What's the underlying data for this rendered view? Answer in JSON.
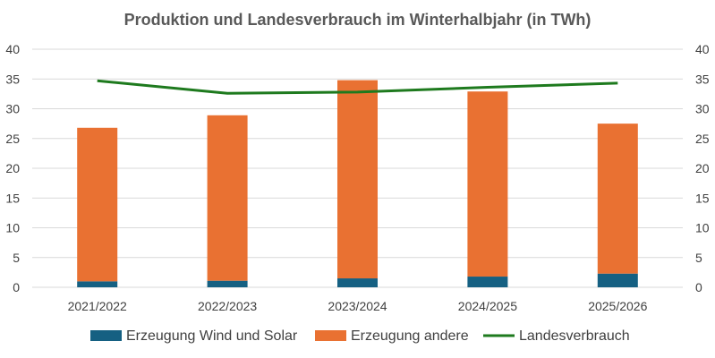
{
  "chart_data": {
    "type": "bar",
    "title": "Produktion und Landesverbrauch im Winterhalbjahr (in TWh)",
    "categories": [
      "2021/2022",
      "2022/2023",
      "2023/2024",
      "2024/2025",
      "2025/2026"
    ],
    "series": [
      {
        "name": "Erzeugung Wind und Solar",
        "kind": "bar-stacked",
        "color": "#156082",
        "values": [
          1.0,
          1.1,
          1.5,
          1.8,
          2.3
        ]
      },
      {
        "name": "Erzeugung andere",
        "kind": "bar-stacked",
        "color": "#e97132",
        "values": [
          25.8,
          27.8,
          33.3,
          31.1,
          25.2
        ]
      },
      {
        "name": "Landesverbrauch",
        "kind": "line",
        "color": "#1e7a1e",
        "values": [
          34.7,
          32.6,
          32.8,
          33.6,
          34.3
        ]
      }
    ],
    "ylim": [
      0,
      40
    ],
    "yticks": [
      "0",
      "5",
      "10",
      "15",
      "20",
      "25",
      "30",
      "35",
      "40"
    ],
    "secondary_axis": true,
    "grid": true,
    "legend_position": "bottom"
  }
}
